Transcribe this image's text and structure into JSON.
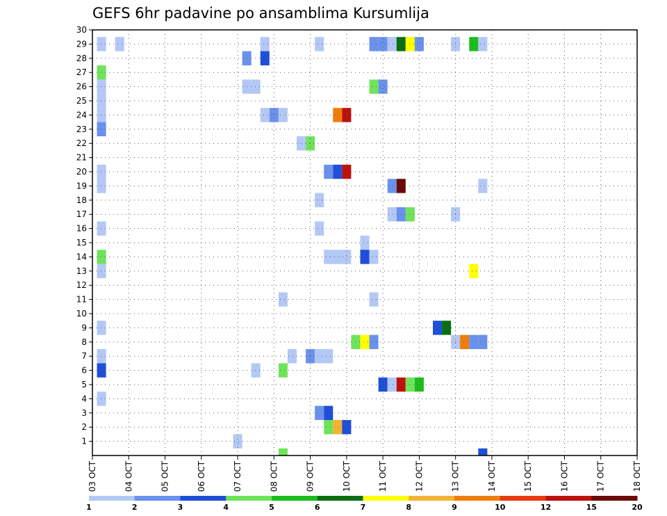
{
  "chart_data": {
    "type": "heatmap",
    "title": "GEFS 6hr padavine po ansamblima Kursumlija",
    "xlabel": "",
    "ylabel": "",
    "x_ticks": [
      "03 OCT",
      "04 OCT",
      "05 OCT",
      "06 OCT",
      "07 OCT",
      "08 OCT",
      "09 OCT",
      "10 OCT",
      "11 OCT",
      "12 OCT",
      "13 OCT",
      "14 OCT",
      "15 OCT",
      "16 OCT",
      "17 OCT",
      "18 OCT"
    ],
    "y_ticks": [
      1,
      2,
      3,
      4,
      5,
      6,
      7,
      8,
      9,
      10,
      11,
      12,
      13,
      14,
      15,
      16,
      17,
      18,
      19,
      20,
      21,
      22,
      23,
      24,
      25,
      26,
      27,
      28,
      29,
      30
    ],
    "xlim_steps": [
      0,
      60
    ],
    "ylim": [
      0,
      30
    ],
    "grid": true,
    "colorbar": {
      "labels": [
        "1",
        "2",
        "3",
        "4",
        "5",
        "6",
        "7",
        "8",
        "9",
        "10",
        "12",
        "15",
        "20"
      ],
      "colors": [
        "#b3c8f5",
        "#6a91ec",
        "#1f4fd8",
        "#6fe35b",
        "#1dbd1d",
        "#0b6e12",
        "#ffff00",
        "#f5b335",
        "#ef7d0c",
        "#e83a0f",
        "#bd120c",
        "#6b0a0a"
      ]
    },
    "cells": [
      {
        "x": 1,
        "y": 29,
        "v": 1
      },
      {
        "x": 1,
        "y": 27,
        "v": 4
      },
      {
        "x": 1,
        "y": 26,
        "v": 1
      },
      {
        "x": 1,
        "y": 25,
        "v": 1
      },
      {
        "x": 1,
        "y": 24,
        "v": 1
      },
      {
        "x": 1,
        "y": 23,
        "v": 2
      },
      {
        "x": 1,
        "y": 20,
        "v": 1
      },
      {
        "x": 1,
        "y": 19,
        "v": 1
      },
      {
        "x": 1,
        "y": 16,
        "v": 1
      },
      {
        "x": 1,
        "y": 14,
        "v": 4
      },
      {
        "x": 1,
        "y": 13,
        "v": 1
      },
      {
        "x": 1,
        "y": 9,
        "v": 1
      },
      {
        "x": 1,
        "y": 7,
        "v": 1
      },
      {
        "x": 1,
        "y": 6,
        "v": 3
      },
      {
        "x": 1,
        "y": 4,
        "v": 1
      },
      {
        "x": 3,
        "y": 29,
        "v": 1
      },
      {
        "x": 16,
        "y": 1,
        "v": 1
      },
      {
        "x": 17,
        "y": 28,
        "v": 2
      },
      {
        "x": 17,
        "y": 26,
        "v": 1
      },
      {
        "x": 18,
        "y": 26,
        "v": 1
      },
      {
        "x": 18,
        "y": 6,
        "v": 1
      },
      {
        "x": 19,
        "y": 29,
        "v": 1
      },
      {
        "x": 19,
        "y": 28,
        "v": 3
      },
      {
        "x": 19,
        "y": 24,
        "v": 1
      },
      {
        "x": 20,
        "y": 24,
        "v": 2
      },
      {
        "x": 21,
        "y": 24,
        "v": 1
      },
      {
        "x": 21,
        "y": 11,
        "v": 1
      },
      {
        "x": 21,
        "y": 6,
        "v": 4
      },
      {
        "x": 21,
        "y": 0,
        "v": 4
      },
      {
        "x": 22,
        "y": 7,
        "v": 1
      },
      {
        "x": 23,
        "y": 22,
        "v": 1
      },
      {
        "x": 24,
        "y": 22,
        "v": 4
      },
      {
        "x": 24,
        "y": 7,
        "v": 2
      },
      {
        "x": 25,
        "y": 29,
        "v": 1
      },
      {
        "x": 25,
        "y": 18,
        "v": 1
      },
      {
        "x": 25,
        "y": 16,
        "v": 1
      },
      {
        "x": 25,
        "y": 7,
        "v": 1
      },
      {
        "x": 25,
        "y": 3,
        "v": 2
      },
      {
        "x": 26,
        "y": 20,
        "v": 2
      },
      {
        "x": 26,
        "y": 14,
        "v": 1
      },
      {
        "x": 26,
        "y": 7,
        "v": 1
      },
      {
        "x": 26,
        "y": 3,
        "v": 3
      },
      {
        "x": 26,
        "y": 2,
        "v": 4
      },
      {
        "x": 27,
        "y": 24,
        "v": 9
      },
      {
        "x": 27,
        "y": 20,
        "v": 3
      },
      {
        "x": 27,
        "y": 14,
        "v": 1
      },
      {
        "x": 27,
        "y": 2,
        "v": 8
      },
      {
        "x": 28,
        "y": 24,
        "v": 12
      },
      {
        "x": 28,
        "y": 20,
        "v": 12
      },
      {
        "x": 28,
        "y": 14,
        "v": 1
      },
      {
        "x": 28,
        "y": 2,
        "v": 3
      },
      {
        "x": 29,
        "y": 8,
        "v": 4
      },
      {
        "x": 30,
        "y": 15,
        "v": 1
      },
      {
        "x": 30,
        "y": 14,
        "v": 3
      },
      {
        "x": 30,
        "y": 8,
        "v": 7
      },
      {
        "x": 31,
        "y": 29,
        "v": 2
      },
      {
        "x": 31,
        "y": 26,
        "v": 4
      },
      {
        "x": 31,
        "y": 14,
        "v": 1
      },
      {
        "x": 31,
        "y": 11,
        "v": 1
      },
      {
        "x": 31,
        "y": 8,
        "v": 2
      },
      {
        "x": 32,
        "y": 29,
        "v": 2
      },
      {
        "x": 32,
        "y": 26,
        "v": 2
      },
      {
        "x": 32,
        "y": 5,
        "v": 3
      },
      {
        "x": 33,
        "y": 29,
        "v": 1
      },
      {
        "x": 33,
        "y": 19,
        "v": 2
      },
      {
        "x": 33,
        "y": 17,
        "v": 1
      },
      {
        "x": 33,
        "y": 5,
        "v": 1
      },
      {
        "x": 34,
        "y": 29,
        "v": 6
      },
      {
        "x": 34,
        "y": 19,
        "v": 20
      },
      {
        "x": 34,
        "y": 17,
        "v": 2
      },
      {
        "x": 34,
        "y": 5,
        "v": 12
      },
      {
        "x": 35,
        "y": 29,
        "v": 7
      },
      {
        "x": 35,
        "y": 17,
        "v": 4
      },
      {
        "x": 35,
        "y": 5,
        "v": 4
      },
      {
        "x": 36,
        "y": 29,
        "v": 2
      },
      {
        "x": 36,
        "y": 5,
        "v": 5
      },
      {
        "x": 38,
        "y": 9,
        "v": 3
      },
      {
        "x": 39,
        "y": 9,
        "v": 6
      },
      {
        "x": 40,
        "y": 29,
        "v": 1
      },
      {
        "x": 40,
        "y": 17,
        "v": 1
      },
      {
        "x": 40,
        "y": 8,
        "v": 1
      },
      {
        "x": 41,
        "y": 8,
        "v": 9
      },
      {
        "x": 42,
        "y": 29,
        "v": 5
      },
      {
        "x": 42,
        "y": 13,
        "v": 7
      },
      {
        "x": 42,
        "y": 8,
        "v": 2
      },
      {
        "x": 43,
        "y": 29,
        "v": 1
      },
      {
        "x": 43,
        "y": 19,
        "v": 1
      },
      {
        "x": 43,
        "y": 8,
        "v": 2
      },
      {
        "x": 43,
        "y": 0,
        "v": 3
      }
    ]
  }
}
